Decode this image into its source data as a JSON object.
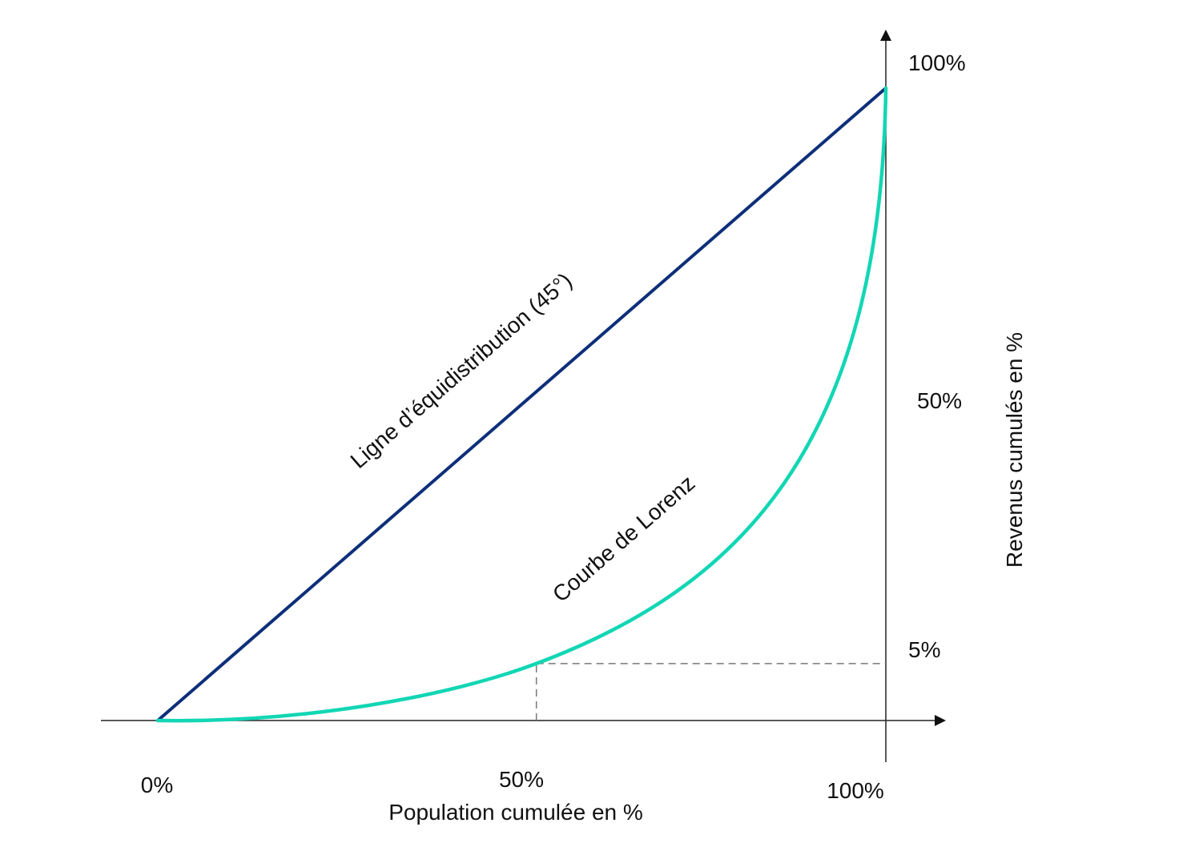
{
  "diagram": {
    "x_axis": {
      "title": "Population cumulée en %",
      "ticks": {
        "zero": "0%",
        "half": "50%",
        "full": "100%"
      }
    },
    "y_axis": {
      "title": "Revenus cumulés en %",
      "ticks": {
        "full": "100%",
        "half": "50%",
        "five": "5%"
      }
    },
    "equidistribution_line": {
      "label": "Ligne d’équidistribution (45°)",
      "color": "#0d2f7a",
      "from": [
        0,
        0
      ],
      "to": [
        100,
        100
      ]
    },
    "lorenz_curve": {
      "label": "Courbe de Lorenz",
      "color": "#12d6b4"
    },
    "reference_point": {
      "population_percent": 52,
      "income_percent": 9,
      "style": "dashed"
    },
    "colors": {
      "axis": "#222222",
      "guide": "#777777"
    }
  }
}
